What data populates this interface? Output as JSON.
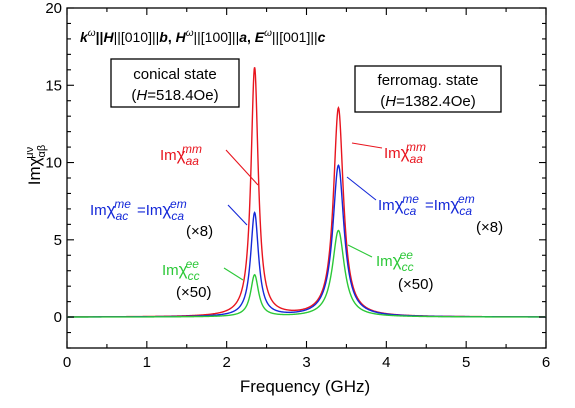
{
  "chart_data": {
    "type": "line",
    "title": "kω||H||[010]||b, Hω||[100]||a, Eω||[001]||c",
    "title_parts": [
      "k",
      "ω",
      "||",
      "H",
      "||[010]||",
      "b",
      ", ",
      "H",
      "ω",
      "||[100]||",
      "a",
      ", ",
      "E",
      "ω",
      "||[001]||",
      "c"
    ],
    "xlabel": "Frequency (GHz)",
    "ylabel_base": "Imχ",
    "ylabel_sup": "μν",
    "ylabel_sub": "αβ",
    "xlim": [
      0,
      6
    ],
    "ylim": [
      -2,
      20
    ],
    "xticks": [
      0,
      1,
      2,
      3,
      4,
      5,
      6
    ],
    "yticks": [
      0,
      5,
      10,
      15,
      20
    ],
    "grid": false,
    "boxes": [
      {
        "line1": "conical state",
        "line2_open": "(",
        "line2_var": "H",
        "line2_rest": "=518.4Oe)"
      },
      {
        "line1": "ferromag. state",
        "line2_open": "(",
        "line2_var": "H",
        "line2_rest": "=1382.4Oe)"
      }
    ],
    "labels": {
      "im": "Im",
      "chi": "χ",
      "mm_sup": "mm",
      "aa_sub": "aa",
      "me_sup": "me",
      "em_sup": "em",
      "ac_sub": "ac",
      "ca_sub": "ca",
      "ee_sup": "ee",
      "cc_sub": "cc",
      "equals": "=",
      "x8": "(×8)",
      "x50": "(×50)"
    },
    "series": [
      {
        "peaks": [
          {
            "x0": 2.35,
            "A": 16.1,
            "g": 0.055
          },
          {
            "x0": 3.4,
            "A": 13.5,
            "g": 0.075
          }
        ],
        "color": "#e8141e"
      },
      {
        "peaks": [
          {
            "x0": 2.35,
            "A": 6.7,
            "g": 0.06
          },
          {
            "x0": 3.4,
            "A": 9.8,
            "g": 0.085
          }
        ],
        "color": "#1428d8"
      },
      {
        "peaks": [
          {
            "x0": 2.35,
            "A": 2.7,
            "g": 0.06
          },
          {
            "x0": 3.4,
            "A": 5.6,
            "g": 0.09
          }
        ],
        "color": "#2cc838"
      }
    ],
    "colors": {
      "mm": "#e8141e",
      "me": "#1428d8",
      "ee": "#2cc838"
    }
  }
}
